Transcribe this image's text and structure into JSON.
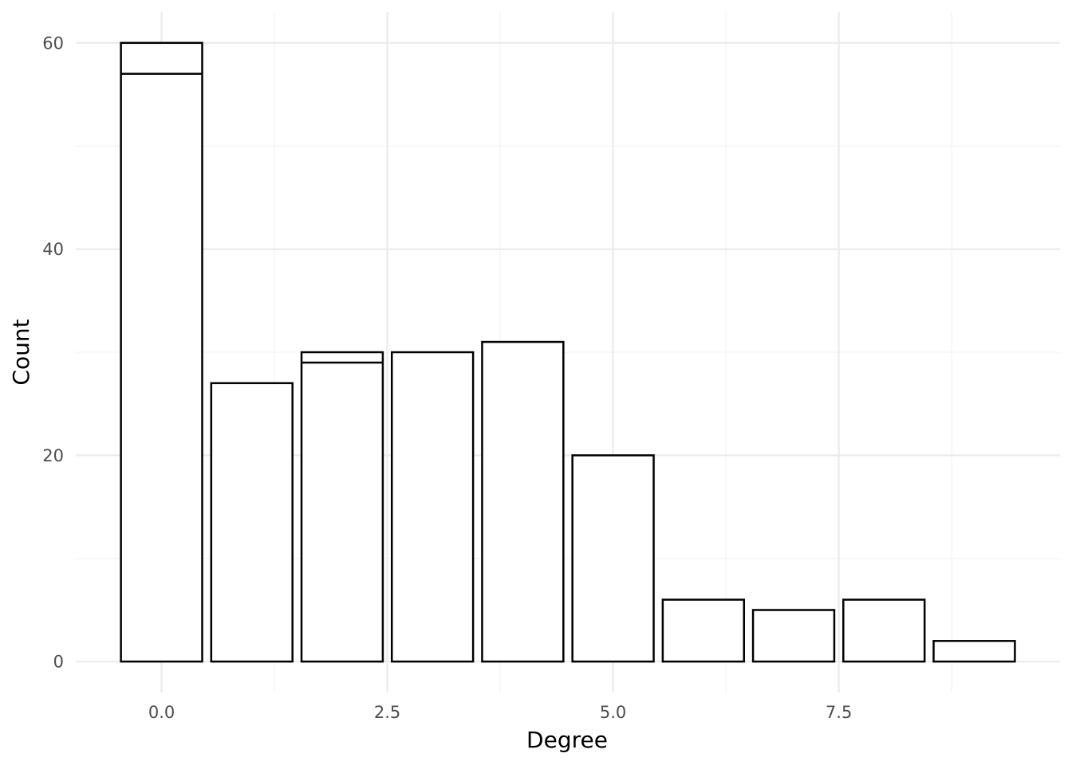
{
  "chart_data": {
    "type": "bar",
    "stacked": true,
    "xlabel": "Degree",
    "ylabel": "Count",
    "x": [
      0,
      1,
      2,
      3,
      4,
      5,
      6,
      7,
      8,
      9
    ],
    "totals": [
      60,
      27,
      30,
      30,
      31,
      20,
      6,
      5,
      6,
      2
    ],
    "segment_boundaries": [
      [
        57
      ],
      [],
      [
        29
      ],
      [],
      [],
      [],
      [],
      [],
      [],
      []
    ],
    "x_ticks": [
      {
        "value": 0,
        "label": "0.0"
      },
      {
        "value": 2.5,
        "label": "2.5"
      },
      {
        "value": 5,
        "label": "5.0"
      },
      {
        "value": 7.5,
        "label": "7.5"
      }
    ],
    "y_ticks": [
      {
        "value": 0,
        "label": "0"
      },
      {
        "value": 20,
        "label": "20"
      },
      {
        "value": 40,
        "label": "40"
      },
      {
        "value": 60,
        "label": "60"
      }
    ],
    "x_minor_ticks": [
      1.25,
      3.75,
      6.25,
      8.75
    ],
    "y_minor_ticks": [
      10,
      30,
      50
    ],
    "xlim": [
      -0.95,
      9.95
    ],
    "ylim": [
      -3,
      63
    ],
    "grid": true,
    "legend": "none",
    "colors": {
      "bar_fill": "#ffffff",
      "bar_stroke": "#000000"
    }
  }
}
